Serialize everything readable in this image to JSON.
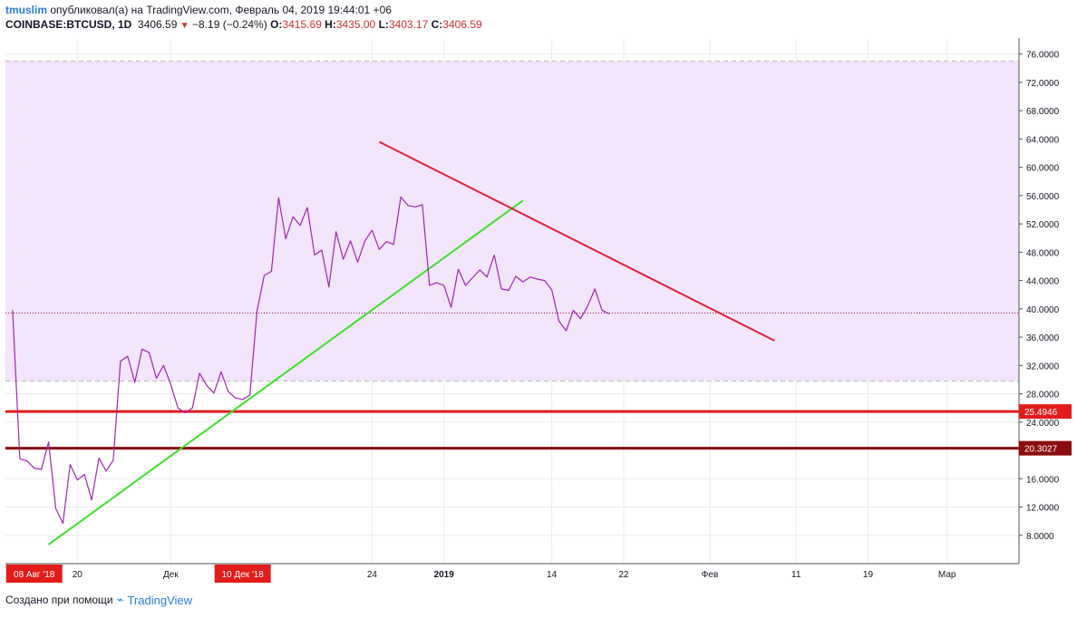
{
  "header": {
    "author": "tmuslim",
    "published_text": "опубликовал(а) на TradingView.com, Февраль 04, 2019 19:44:01 +06",
    "symbol": "COINBASE:BTCUSD, 1D",
    "last": "3406.59",
    "change": "−8.19 (−0.24%)",
    "o_label": "O:",
    "o_value": "3415.69",
    "h_label": "H:",
    "h_value": "3435.00",
    "l_label": "L:",
    "l_value": "3403.17",
    "c_label": "C:",
    "c_value": "3406.59"
  },
  "footer": {
    "created_with": "Создано при помощи",
    "brand": "TradingView"
  },
  "colors": {
    "price_line": "#9c27b0",
    "zone_fill": "#f3e5fc",
    "green_trend": "#3ce02a",
    "red_trend": "#e0203a",
    "level_1": "#e31b1b",
    "level_2": "#8b0d0d",
    "grid": "#e8e8ee",
    "date_tag": "#e31b1b"
  },
  "chart_data": {
    "type": "line",
    "ylim": [
      4,
      78
    ],
    "y_ticks": [
      "8.0000",
      "12.0000",
      "16.0000",
      "20.0000",
      "24.0000",
      "28.0000",
      "32.0000",
      "36.0000",
      "40.0000",
      "44.0000",
      "48.0000",
      "52.0000",
      "56.0000",
      "60.0000",
      "64.0000",
      "68.0000",
      "72.0000",
      "76.0000"
    ],
    "x_range": [
      -1,
      140
    ],
    "x_ticks": [
      {
        "x": 9,
        "label": "20",
        "bold": false
      },
      {
        "x": 22,
        "label": "Дек",
        "bold": false
      },
      {
        "x": 50,
        "label": "24",
        "bold": false
      },
      {
        "x": 60,
        "label": "2019",
        "bold": true
      },
      {
        "x": 75,
        "label": "14",
        "bold": false
      },
      {
        "x": 85,
        "label": "22",
        "bold": false
      },
      {
        "x": 97,
        "label": "Фев",
        "bold": false
      },
      {
        "x": 109,
        "label": "11",
        "bold": false
      },
      {
        "x": 119,
        "label": "19",
        "bold": false
      },
      {
        "x": 130,
        "label": "Мар",
        "bold": false
      }
    ],
    "date_tags": [
      {
        "x": 3,
        "label": "08 Авг '18"
      },
      {
        "x": 32,
        "label": "10 Дек '18"
      }
    ],
    "series": [
      {
        "values": [
          39.8,
          18.8,
          18.5,
          17.5,
          17.3,
          21.2,
          11.8,
          9.7,
          18.0,
          15.8,
          16.6,
          13.0,
          18.9,
          17.1,
          18.6,
          32.6,
          33.3,
          29.6,
          34.3,
          33.8,
          30.2,
          32.0,
          29.3,
          26.0,
          25.3,
          26.0,
          30.9,
          29.2,
          28.1,
          31.1,
          28.3,
          27.4,
          27.2,
          27.8,
          39.7,
          44.7,
          45.3,
          55.7,
          49.9,
          53.0,
          51.8,
          54.3,
          47.6,
          48.3,
          43.1,
          50.9,
          47.0,
          49.6,
          46.6,
          49.6,
          51.1,
          48.4,
          49.5,
          49.1,
          55.8,
          54.6,
          54.4,
          54.7,
          43.3,
          43.7,
          43.3,
          40.2,
          45.6,
          43.3,
          44.4,
          45.5,
          44.5,
          47.6,
          42.8,
          42.6,
          44.6,
          43.8,
          44.5,
          44.2,
          44.0,
          42.7,
          38.3,
          36.9,
          39.8,
          38.6,
          40.4,
          42.8,
          39.8,
          39.3
        ]
      }
    ],
    "trend_lines": [
      {
        "name": "green-support",
        "from": [
          5,
          6.7
        ],
        "to": [
          71,
          55.3
        ]
      },
      {
        "name": "red-resistance",
        "from": [
          51,
          63.6
        ],
        "to": [
          106,
          35.5
        ]
      }
    ],
    "zone": {
      "from": 29.8,
      "to": 75.0
    },
    "price_line_level": 39.4,
    "levels": [
      {
        "value": 25.4946,
        "label": "25.4946"
      },
      {
        "value": 20.3027,
        "label": "20.3027"
      }
    ]
  }
}
